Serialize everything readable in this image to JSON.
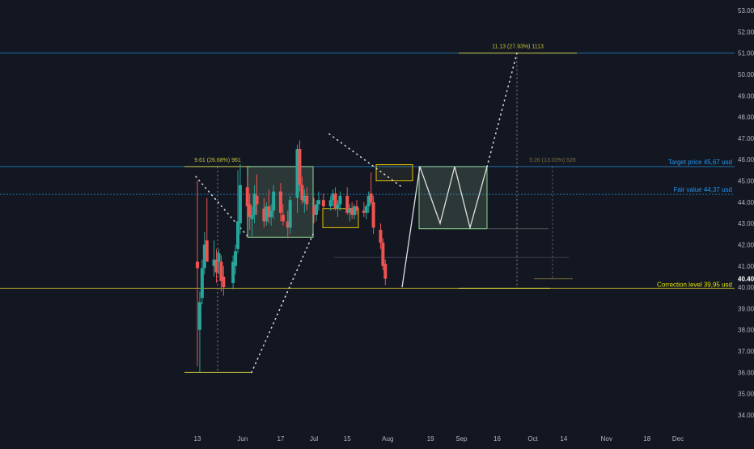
{
  "chart_data": {
    "type": "candlestick",
    "x_axis": {
      "labels": [
        "13",
        "Jun",
        "17",
        "Jul",
        "15",
        "Aug",
        "19",
        "Sep",
        "16",
        "Oct",
        "14",
        "Nov",
        "18",
        "Dec"
      ],
      "start_date": "2024-05-06",
      "end_date": "2024-12-20"
    },
    "y_axis": {
      "ticks": [
        "34.00",
        "35.00",
        "36.00",
        "37.00",
        "38.00",
        "39.00",
        "40.00",
        "41.00",
        "42.00",
        "43.00",
        "44.00",
        "45.00",
        "46.00",
        "47.00",
        "48.00",
        "49.00",
        "50.00",
        "51.00",
        "52.00",
        "53.00"
      ],
      "ylim": [
        33.3,
        53.3
      ],
      "last_price_label": "40.40",
      "last_price": 40.4
    },
    "candles": [
      {
        "date": "2024-05-13",
        "o": 41.2,
        "h": 45.0,
        "l": 36.3,
        "c": 40.9
      },
      {
        "date": "2024-05-14",
        "o": 38.0,
        "h": 39.8,
        "l": 36.0,
        "c": 39.3
      },
      {
        "date": "2024-05-15",
        "o": 39.5,
        "h": 41.3,
        "l": 39.2,
        "c": 40.9
      },
      {
        "date": "2024-05-16",
        "o": 40.9,
        "h": 42.6,
        "l": 40.6,
        "c": 42.0
      },
      {
        "date": "2024-05-17",
        "o": 42.2,
        "h": 44.2,
        "l": 41.3,
        "c": 41.2
      },
      {
        "date": "2024-05-20",
        "o": 41.0,
        "h": 42.2,
        "l": 40.5,
        "c": 41.3
      },
      {
        "date": "2024-05-21",
        "o": 41.3,
        "h": 41.8,
        "l": 40.2,
        "c": 40.7
      },
      {
        "date": "2024-05-22",
        "o": 41.2,
        "h": 41.8,
        "l": 40.6,
        "c": 41.6
      },
      {
        "date": "2024-05-23",
        "o": 41.2,
        "h": 41.5,
        "l": 39.8,
        "c": 40.3
      },
      {
        "date": "2024-05-24",
        "o": 40.5,
        "h": 41.0,
        "l": 39.6,
        "c": 40.0
      },
      {
        "date": "2024-05-28",
        "o": 40.2,
        "h": 41.5,
        "l": 39.9,
        "c": 41.2
      },
      {
        "date": "2024-05-29",
        "o": 41.0,
        "h": 42.0,
        "l": 40.6,
        "c": 41.7
      },
      {
        "date": "2024-05-30",
        "o": 41.8,
        "h": 45.5,
        "l": 41.6,
        "c": 43.1
      },
      {
        "date": "2024-05-31",
        "o": 43.0,
        "h": 45.8,
        "l": 42.5,
        "c": 44.8
      },
      {
        "date": "2024-06-03",
        "o": 44.7,
        "h": 45.2,
        "l": 43.5,
        "c": 43.8
      },
      {
        "date": "2024-06-04",
        "o": 43.9,
        "h": 44.4,
        "l": 42.7,
        "c": 43.3
      },
      {
        "date": "2024-06-05",
        "o": 43.2,
        "h": 43.8,
        "l": 42.4,
        "c": 43.4
      },
      {
        "date": "2024-06-06",
        "o": 43.4,
        "h": 44.8,
        "l": 43.0,
        "c": 44.4
      },
      {
        "date": "2024-06-07",
        "o": 44.3,
        "h": 45.3,
        "l": 43.4,
        "c": 43.9
      },
      {
        "date": "2024-06-10",
        "o": 43.7,
        "h": 44.2,
        "l": 42.8,
        "c": 43.1
      },
      {
        "date": "2024-06-11",
        "o": 43.1,
        "h": 44.0,
        "l": 42.9,
        "c": 43.8
      },
      {
        "date": "2024-06-12",
        "o": 43.8,
        "h": 44.6,
        "l": 43.0,
        "c": 43.3
      },
      {
        "date": "2024-06-13",
        "o": 43.3,
        "h": 43.9,
        "l": 42.9,
        "c": 43.6
      },
      {
        "date": "2024-06-14",
        "o": 43.6,
        "h": 44.8,
        "l": 43.2,
        "c": 44.5
      },
      {
        "date": "2024-06-17",
        "o": 44.5,
        "h": 44.9,
        "l": 43.1,
        "c": 43.5
      },
      {
        "date": "2024-06-18",
        "o": 43.4,
        "h": 43.9,
        "l": 42.9,
        "c": 43.1
      },
      {
        "date": "2024-06-20",
        "o": 43.1,
        "h": 43.6,
        "l": 42.3,
        "c": 42.8
      },
      {
        "date": "2024-06-21",
        "o": 42.8,
        "h": 44.3,
        "l": 42.5,
        "c": 44.1
      },
      {
        "date": "2024-06-24",
        "o": 44.2,
        "h": 46.7,
        "l": 43.5,
        "c": 46.5
      },
      {
        "date": "2024-06-25",
        "o": 46.5,
        "h": 46.9,
        "l": 44.5,
        "c": 44.8
      },
      {
        "date": "2024-06-26",
        "o": 44.8,
        "h": 45.2,
        "l": 43.9,
        "c": 44.1
      },
      {
        "date": "2024-06-27",
        "o": 44.0,
        "h": 44.6,
        "l": 43.5,
        "c": 44.3
      },
      {
        "date": "2024-06-28",
        "o": 44.3,
        "h": 44.7,
        "l": 43.6,
        "c": 43.9
      },
      {
        "date": "2024-07-01",
        "o": 43.8,
        "h": 44.2,
        "l": 43.0,
        "c": 43.4
      },
      {
        "date": "2024-07-02",
        "o": 43.4,
        "h": 44.1,
        "l": 43.1,
        "c": 43.9
      },
      {
        "date": "2024-07-03",
        "o": 43.9,
        "h": 44.5,
        "l": 43.6,
        "c": 44.1
      },
      {
        "date": "2024-07-05",
        "o": 44.1,
        "h": 44.4,
        "l": 43.7,
        "c": 43.8
      },
      {
        "date": "2024-07-08",
        "o": 43.8,
        "h": 44.3,
        "l": 43.6,
        "c": 44.1
      },
      {
        "date": "2024-07-09",
        "o": 44.1,
        "h": 44.6,
        "l": 43.8,
        "c": 44.4
      },
      {
        "date": "2024-07-10",
        "o": 44.4,
        "h": 44.7,
        "l": 43.6,
        "c": 43.7
      },
      {
        "date": "2024-07-11",
        "o": 43.7,
        "h": 44.1,
        "l": 43.3,
        "c": 43.9
      },
      {
        "date": "2024-07-12",
        "o": 43.9,
        "h": 44.5,
        "l": 43.6,
        "c": 44.3
      },
      {
        "date": "2024-07-15",
        "o": 44.3,
        "h": 44.7,
        "l": 43.4,
        "c": 43.5
      },
      {
        "date": "2024-07-16",
        "o": 43.5,
        "h": 43.9,
        "l": 43.1,
        "c": 43.7
      },
      {
        "date": "2024-07-17",
        "o": 43.7,
        "h": 44.0,
        "l": 43.2,
        "c": 43.4
      },
      {
        "date": "2024-07-18",
        "o": 43.4,
        "h": 43.9,
        "l": 43.2,
        "c": 43.8
      },
      {
        "date": "2024-07-19",
        "o": 43.8,
        "h": 44.1,
        "l": 43.4,
        "c": 43.6
      },
      {
        "date": "2024-07-22",
        "o": 43.6,
        "h": 44.0,
        "l": 43.3,
        "c": 43.5
      },
      {
        "date": "2024-07-23",
        "o": 43.5,
        "h": 43.9,
        "l": 43.2,
        "c": 43.8
      },
      {
        "date": "2024-07-24",
        "o": 43.8,
        "h": 44.5,
        "l": 43.5,
        "c": 44.3
      },
      {
        "date": "2024-07-25",
        "o": 44.4,
        "h": 45.4,
        "l": 43.9,
        "c": 44.0
      },
      {
        "date": "2024-07-26",
        "o": 44.0,
        "h": 44.3,
        "l": 42.5,
        "c": 42.8
      },
      {
        "date": "2024-07-29",
        "o": 42.7,
        "h": 43.0,
        "l": 41.8,
        "c": 42.1
      },
      {
        "date": "2024-07-30",
        "o": 42.1,
        "h": 42.3,
        "l": 40.8,
        "c": 41.0
      },
      {
        "date": "2024-07-31",
        "o": 41.1,
        "h": 41.3,
        "l": 40.1,
        "c": 40.4
      }
    ],
    "horizontal_levels": [
      {
        "label": "Target price 45,67 usd",
        "value": 45.67,
        "color": "#2196f3"
      },
      {
        "label": "Fair value 44,37 usd",
        "value": 44.37,
        "color": "#2196f3"
      },
      {
        "label": "Correction level 39,95 usd",
        "value": 39.95,
        "color": "#e5e500"
      },
      {
        "label": "",
        "value": 51.0,
        "color": "#2196f3"
      }
    ],
    "annotations": [
      {
        "text": "9.61 (26.68%) 961",
        "color": "#c8c23a"
      },
      {
        "text": "11.13 (27.93%) 1113",
        "color": "#c8c23a"
      },
      {
        "text": "5.26 (13.03%) 526",
        "color": "#7a6f3a"
      }
    ],
    "colors": {
      "background": "#131722",
      "up": "#26a69a",
      "down": "#ef5350",
      "axis_text": "#b2b5be",
      "box_green": "#8fd48f",
      "box_yellow": "#e5c100"
    }
  }
}
